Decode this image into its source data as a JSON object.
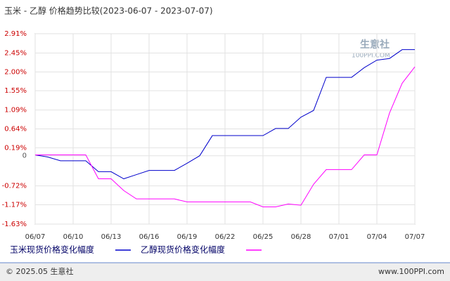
{
  "chart_data": {
    "type": "line",
    "title": "玉米 - 乙醇 价格趋势比较(2023-06-07 - 2023-07-07)",
    "watermark": [
      "生意社",
      "100PPI.COM"
    ],
    "footer_left": "© 2025.05 生意社",
    "footer_right": "www.100PPI.com",
    "categories": [
      "06/07",
      null,
      null,
      "06/10",
      null,
      null,
      "06/13",
      null,
      null,
      "06/16",
      null,
      null,
      "06/19",
      null,
      null,
      "06/22",
      null,
      null,
      "06/25",
      null,
      null,
      "06/28",
      null,
      null,
      "07/01",
      null,
      null,
      "07/04",
      null,
      null,
      "07/07"
    ],
    "series": [
      {
        "name": "玉米现货价格变化幅度",
        "color": "#0000cc",
        "values": [
          0.02,
          -0.03,
          -0.12,
          -0.12,
          -0.12,
          -0.38,
          -0.38,
          -0.55,
          -0.45,
          -0.35,
          -0.35,
          -0.35,
          -0.18,
          0,
          0.48,
          0.48,
          0.48,
          0.48,
          0.48,
          0.65,
          0.65,
          0.92,
          1.08,
          1.87,
          1.87,
          1.87,
          2.1,
          2.28,
          2.32,
          2.53,
          2.53
        ]
      },
      {
        "name": "乙醇现货价格变化幅度",
        "color": "#ff00ff",
        "values": [
          0.02,
          0.02,
          0.02,
          0.02,
          0.02,
          -0.55,
          -0.55,
          -0.83,
          -1.03,
          -1.03,
          -1.03,
          -1.03,
          -1.1,
          -1.1,
          -1.1,
          -1.1,
          -1.1,
          -1.1,
          -1.22,
          -1.22,
          -1.15,
          -1.18,
          -0.68,
          -0.33,
          -0.33,
          -0.33,
          0.02,
          0.02,
          1.02,
          1.73,
          2.12
        ]
      }
    ],
    "ylim": [
      -1.63,
      2.91
    ],
    "yticks": [
      {
        "value": -1.63,
        "label": "-1.63%"
      },
      {
        "value": -1.17,
        "label": "-1.17%"
      },
      {
        "value": -0.72,
        "label": "-0.72%"
      },
      0,
      {
        "value": 0.19,
        "label": "0.19%"
      },
      {
        "value": 0.64,
        "label": "0.64%"
      },
      {
        "value": 1.09,
        "label": "1.09%"
      },
      {
        "value": 1.55,
        "label": "1.55%"
      },
      {
        "value": 2.0,
        "label": "2.00%"
      },
      {
        "value": 2.45,
        "label": "2.45%"
      },
      {
        "value": 2.91,
        "label": "2.91%"
      }
    ],
    "grid": true
  }
}
